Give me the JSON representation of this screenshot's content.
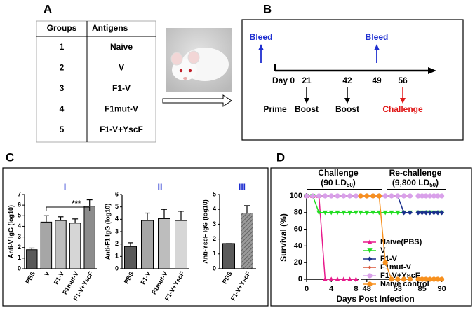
{
  "panel_labels": [
    "A",
    "B",
    "C",
    "D"
  ],
  "table": {
    "header": [
      "Groups",
      "Antigens"
    ],
    "rows": [
      [
        "1",
        "Naïve"
      ],
      [
        "2",
        "V"
      ],
      [
        "3",
        "F1-V"
      ],
      [
        "4",
        "F1mut-V"
      ],
      [
        "5",
        "F1-V+YscF"
      ]
    ]
  },
  "timeline": {
    "bleed": [
      "Bleed",
      "Bleed"
    ],
    "days": [
      "Day 0",
      "21",
      "42",
      "49",
      "56"
    ],
    "events": [
      "Prime",
      "Boost",
      "Boost",
      "Challenge"
    ]
  },
  "chart_data": [
    {
      "type": "bar",
      "title": "I",
      "y_label": "Anti-V IgG (log10)",
      "categories": [
        "PBS",
        "V",
        "F1-V",
        "F1mut-V",
        "F1-V+YscF"
      ],
      "values": [
        1.8,
        4.4,
        4.55,
        4.3,
        5.9
      ],
      "errors": [
        0.15,
        0.6,
        0.35,
        0.4,
        0.6
      ],
      "colors": [
        "#5a5a5a",
        "#a6a6a6",
        "#bdbdbd",
        "#d6d6d6",
        "#8c8c8c"
      ],
      "patterns": [
        "solid",
        "solid",
        "solid",
        "solid",
        "solid"
      ],
      "ylim": [
        0,
        7
      ],
      "yticks": [
        0,
        1,
        2,
        3,
        4,
        5,
        6,
        7
      ],
      "annotation": "***"
    },
    {
      "type": "bar",
      "title": "II",
      "y_label": "Anti-F1 IgG (log10)",
      "categories": [
        "PBS",
        "F1-V",
        "F1mut-V",
        "F1-V+YscF"
      ],
      "values": [
        1.8,
        3.9,
        4.05,
        3.9
      ],
      "errors": [
        0.3,
        0.6,
        0.75,
        0.75
      ],
      "colors": [
        "#5a5a5a",
        "#a6a6a6",
        "#bdbdbd",
        "#d6d6d6"
      ],
      "patterns": [
        "solid",
        "solid",
        "solid",
        "solid"
      ],
      "ylim": [
        0,
        6
      ],
      "yticks": [
        0,
        1,
        2,
        3,
        4,
        5,
        6
      ]
    },
    {
      "type": "bar",
      "title": "III",
      "y_label": "Anti-YscF IgG (log10)",
      "categories": [
        "PBS",
        "F1-V+YscF"
      ],
      "values": [
        1.7,
        3.75
      ],
      "errors": [
        0,
        0.5
      ],
      "colors": [
        "#5a5a5a",
        "#8c8c8c"
      ],
      "patterns": [
        "solid",
        "hatched"
      ],
      "ylim": [
        0,
        5
      ],
      "yticks": [
        0,
        1,
        2,
        3,
        4,
        5
      ]
    },
    {
      "type": "line",
      "y_label": "Survival (%)",
      "x_label": "Days Post Infection",
      "x": [
        0,
        1,
        2,
        3,
        4,
        5,
        6,
        7,
        8,
        47,
        48,
        49,
        50,
        51,
        52,
        53,
        54,
        55,
        84,
        85,
        86,
        87,
        88,
        89,
        90
      ],
      "x_segments": [
        {
          "xlim": [
            0,
            8.5
          ],
          "xticks": [
            0,
            4,
            8
          ]
        },
        {
          "xlim": [
            47,
            55.5
          ],
          "xticks": [
            48,
            53
          ]
        },
        {
          "xlim": [
            84,
            90.5
          ],
          "xticks": [
            85,
            90
          ]
        }
      ],
      "ylim": [
        0,
        100
      ],
      "yticks": [
        0,
        20,
        40,
        60,
        80,
        100
      ],
      "legend": "lower right",
      "annotations": [
        {
          "title": "Challenge",
          "dose": [
            "(90 LD",
            "50",
            ")"
          ]
        },
        {
          "title": "Re-challenge",
          "dose": [
            "(9,800 LD",
            "50",
            ")"
          ]
        }
      ],
      "series": [
        {
          "name": "Naive(PBS)",
          "color": "#e8198b",
          "marker": "triangle-up",
          "values": [
            100,
            100,
            100,
            0,
            0,
            0,
            0,
            0,
            0,
            null,
            null,
            null,
            null,
            null,
            null,
            null,
            null,
            null,
            null,
            null,
            null,
            null,
            null,
            null,
            null
          ]
        },
        {
          "name": "V",
          "color": "#22dd22",
          "marker": "triangle-down",
          "values": [
            100,
            100,
            80,
            80,
            80,
            80,
            80,
            80,
            80,
            80,
            80,
            80,
            80,
            80,
            80,
            80,
            80,
            80,
            80,
            80,
            80,
            80,
            80,
            80,
            80
          ]
        },
        {
          "name": "F1-V",
          "color": "#1a2f8c",
          "marker": "diamond",
          "values": [
            100,
            100,
            100,
            100,
            100,
            100,
            100,
            100,
            100,
            100,
            100,
            100,
            100,
            100,
            100,
            100,
            80,
            80,
            80,
            80,
            80,
            80,
            80,
            80,
            80
          ]
        },
        {
          "name": "F1mut-V",
          "color": "#d9573a",
          "marker": "small-diamond",
          "values": [
            100,
            100,
            100,
            100,
            100,
            100,
            100,
            100,
            100,
            100,
            100,
            100,
            100,
            100,
            100,
            100,
            100,
            100,
            100,
            100,
            100,
            100,
            100,
            100,
            100
          ]
        },
        {
          "name": "F1-V+YscF",
          "color": "#d9a0ea",
          "marker": "circle",
          "values": [
            100,
            100,
            100,
            100,
            100,
            100,
            100,
            100,
            100,
            100,
            100,
            100,
            100,
            100,
            100,
            100,
            100,
            100,
            100,
            100,
            100,
            100,
            100,
            100,
            100
          ]
        },
        {
          "name": "Naive control",
          "color": "#f7901e",
          "marker": "circle",
          "values": [
            null,
            null,
            null,
            null,
            null,
            null,
            null,
            null,
            null,
            100,
            100,
            100,
            100,
            20,
            0,
            0,
            0,
            0,
            0,
            0,
            0,
            0,
            0,
            0,
            0
          ]
        }
      ]
    }
  ]
}
